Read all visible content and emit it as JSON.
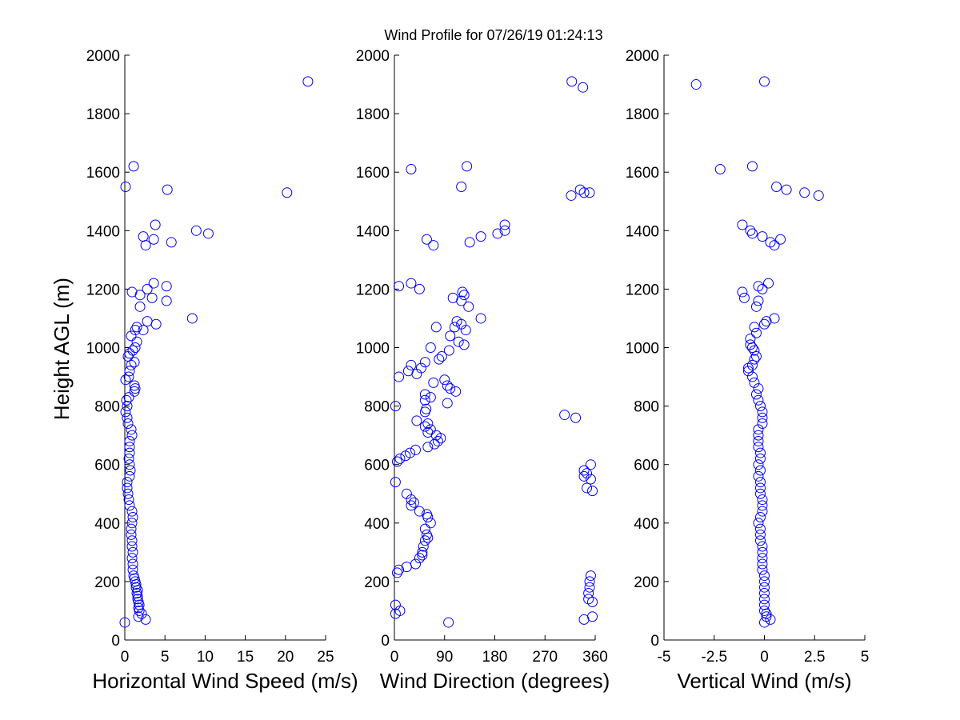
{
  "figure": {
    "title": "Wind Profile for  07/26/19 01:24:13",
    "ylabel": "Height AGL (m)"
  },
  "colors": {
    "marker": "#0000ff",
    "axis": "#000000"
  },
  "chart_data": [
    {
      "type": "scatter",
      "xlabel": "Horizontal Wind Speed (m/s)",
      "ylabel": "Height AGL (m)",
      "xlim": [
        0,
        25
      ],
      "ylim": [
        0,
        2000
      ],
      "xticks": [
        0,
        5,
        10,
        15,
        20,
        25
      ],
      "xtick_labels": [
        "0",
        "5",
        "10",
        "15",
        "20",
        "25"
      ],
      "yticks": [
        0,
        200,
        400,
        600,
        800,
        1000,
        1200,
        1400,
        1600,
        1800,
        2000
      ],
      "ytick_labels": [
        "0",
        "200",
        "400",
        "600",
        "800",
        "1000",
        "1200",
        "1400",
        "1600",
        "1800",
        "2000"
      ],
      "grid": false,
      "points": [
        [
          0.0,
          60
        ],
        [
          2.6,
          70
        ],
        [
          1.7,
          80
        ],
        [
          2.1,
          90
        ],
        [
          1.8,
          100
        ],
        [
          1.7,
          110
        ],
        [
          1.8,
          120
        ],
        [
          1.7,
          130
        ],
        [
          1.6,
          140
        ],
        [
          1.6,
          150
        ],
        [
          1.5,
          160
        ],
        [
          1.6,
          170
        ],
        [
          1.4,
          180
        ],
        [
          1.4,
          190
        ],
        [
          1.3,
          200
        ],
        [
          1.2,
          210
        ],
        [
          1.1,
          220
        ],
        [
          1.0,
          240
        ],
        [
          1.0,
          260
        ],
        [
          0.9,
          280
        ],
        [
          1.0,
          300
        ],
        [
          0.9,
          320
        ],
        [
          0.9,
          340
        ],
        [
          0.8,
          360
        ],
        [
          0.8,
          380
        ],
        [
          0.9,
          400
        ],
        [
          1.0,
          420
        ],
        [
          0.9,
          440
        ],
        [
          0.6,
          460
        ],
        [
          0.5,
          480
        ],
        [
          0.4,
          500
        ],
        [
          0.3,
          520
        ],
        [
          0.3,
          540
        ],
        [
          0.6,
          560
        ],
        [
          0.7,
          580
        ],
        [
          0.6,
          600
        ],
        [
          0.5,
          620
        ],
        [
          0.6,
          640
        ],
        [
          0.6,
          660
        ],
        [
          0.6,
          680
        ],
        [
          0.9,
          700
        ],
        [
          0.8,
          720
        ],
        [
          0.4,
          740
        ],
        [
          0.3,
          760
        ],
        [
          0.1,
          780
        ],
        [
          0.3,
          800
        ],
        [
          0.2,
          820
        ],
        [
          0.5,
          830
        ],
        [
          1.2,
          850
        ],
        [
          1.3,
          860
        ],
        [
          1.2,
          870
        ],
        [
          0.1,
          890
        ],
        [
          0.5,
          900
        ],
        [
          0.6,
          920
        ],
        [
          0.8,
          940
        ],
        [
          1.2,
          950
        ],
        [
          0.4,
          970
        ],
        [
          0.6,
          980
        ],
        [
          1.0,
          990
        ],
        [
          1.3,
          1000
        ],
        [
          1.5,
          1020
        ],
        [
          0.8,
          1040
        ],
        [
          1.3,
          1060
        ],
        [
          2.3,
          1060
        ],
        [
          1.5,
          1070
        ],
        [
          3.9,
          1080
        ],
        [
          2.8,
          1090
        ],
        [
          8.4,
          1100
        ],
        [
          1.9,
          1140
        ],
        [
          5.2,
          1160
        ],
        [
          3.4,
          1170
        ],
        [
          1.9,
          1180
        ],
        [
          0.9,
          1190
        ],
        [
          2.8,
          1200
        ],
        [
          5.2,
          1210
        ],
        [
          3.6,
          1220
        ],
        [
          2.6,
          1350
        ],
        [
          3.6,
          1370
        ],
        [
          2.3,
          1380
        ],
        [
          10.4,
          1390
        ],
        [
          8.9,
          1400
        ],
        [
          3.8,
          1420
        ],
        [
          5.8,
          1360
        ],
        [
          20.2,
          1530
        ],
        [
          5.3,
          1540
        ],
        [
          0.1,
          1550
        ],
        [
          1.1,
          1620
        ],
        [
          22.8,
          1910
        ]
      ]
    },
    {
      "type": "scatter",
      "xlabel": "Wind Direction (degrees)",
      "ylabel": "",
      "xlim": [
        0,
        360
      ],
      "ylim": [
        0,
        2000
      ],
      "xticks": [
        0,
        90,
        180,
        270,
        360
      ],
      "xtick_labels": [
        "0",
        "90",
        "180",
        "270",
        "360"
      ],
      "yticks": [
        0,
        200,
        400,
        600,
        800,
        1000,
        1200,
        1400,
        1600,
        1800,
        2000
      ],
      "ytick_labels": [
        "0",
        "200",
        "400",
        "600",
        "800",
        "1000",
        "1200",
        "1400",
        "1600",
        "1800",
        "2000"
      ],
      "grid": false,
      "points": [
        [
          97,
          60
        ],
        [
          340,
          70
        ],
        [
          355,
          80
        ],
        [
          2,
          90
        ],
        [
          10,
          100
        ],
        [
          2,
          120
        ],
        [
          355,
          130
        ],
        [
          348,
          140
        ],
        [
          348,
          160
        ],
        [
          350,
          180
        ],
        [
          350,
          200
        ],
        [
          352,
          220
        ],
        [
          5,
          230
        ],
        [
          8,
          240
        ],
        [
          22,
          250
        ],
        [
          38,
          260
        ],
        [
          45,
          280
        ],
        [
          50,
          290
        ],
        [
          50,
          300
        ],
        [
          52,
          320
        ],
        [
          55,
          340
        ],
        [
          60,
          350
        ],
        [
          58,
          360
        ],
        [
          55,
          380
        ],
        [
          65,
          400
        ],
        [
          60,
          420
        ],
        [
          58,
          430
        ],
        [
          45,
          440
        ],
        [
          30,
          460
        ],
        [
          35,
          470
        ],
        [
          30,
          480
        ],
        [
          22,
          500
        ],
        [
          355,
          510
        ],
        [
          345,
          520
        ],
        [
          2,
          540
        ],
        [
          352,
          550
        ],
        [
          340,
          560
        ],
        [
          345,
          570
        ],
        [
          340,
          580
        ],
        [
          352,
          600
        ],
        [
          5,
          610
        ],
        [
          10,
          620
        ],
        [
          20,
          630
        ],
        [
          28,
          640
        ],
        [
          38,
          650
        ],
        [
          60,
          660
        ],
        [
          72,
          670
        ],
        [
          78,
          680
        ],
        [
          83,
          690
        ],
        [
          75,
          700
        ],
        [
          60,
          710
        ],
        [
          65,
          720
        ],
        [
          55,
          730
        ],
        [
          60,
          740
        ],
        [
          40,
          750
        ],
        [
          325,
          760
        ],
        [
          305,
          770
        ],
        [
          55,
          780
        ],
        [
          57,
          790
        ],
        [
          2,
          800
        ],
        [
          95,
          810
        ],
        [
          55,
          820
        ],
        [
          65,
          830
        ],
        [
          55,
          840
        ],
        [
          110,
          850
        ],
        [
          100,
          860
        ],
        [
          95,
          870
        ],
        [
          70,
          880
        ],
        [
          90,
          890
        ],
        [
          8,
          900
        ],
        [
          40,
          910
        ],
        [
          25,
          920
        ],
        [
          48,
          930
        ],
        [
          30,
          940
        ],
        [
          55,
          950
        ],
        [
          80,
          960
        ],
        [
          85,
          970
        ],
        [
          98,
          990
        ],
        [
          65,
          1000
        ],
        [
          125,
          1010
        ],
        [
          115,
          1020
        ],
        [
          100,
          1040
        ],
        [
          128,
          1060
        ],
        [
          108,
          1070
        ],
        [
          75,
          1070
        ],
        [
          120,
          1080
        ],
        [
          112,
          1090
        ],
        [
          155,
          1100
        ],
        [
          133,
          1140
        ],
        [
          120,
          1160
        ],
        [
          105,
          1170
        ],
        [
          125,
          1180
        ],
        [
          122,
          1190
        ],
        [
          45,
          1200
        ],
        [
          8,
          1210
        ],
        [
          30,
          1220
        ],
        [
          70,
          1350
        ],
        [
          58,
          1370
        ],
        [
          135,
          1360
        ],
        [
          155,
          1380
        ],
        [
          185,
          1390
        ],
        [
          198,
          1400
        ],
        [
          198,
          1420
        ],
        [
          340,
          1530
        ],
        [
          350,
          1530
        ],
        [
          333,
          1540
        ],
        [
          120,
          1550
        ],
        [
          30,
          1610
        ],
        [
          130,
          1620
        ],
        [
          317,
          1520
        ],
        [
          318,
          1910
        ],
        [
          338,
          1890
        ]
      ]
    },
    {
      "type": "scatter",
      "xlabel": "Vertical Wind (m/s)",
      "ylabel": "",
      "xlim": [
        -5,
        5
      ],
      "ylim": [
        0,
        2000
      ],
      "xticks": [
        -5,
        -2.5,
        0,
        2.5,
        5
      ],
      "xtick_labels": [
        "-5",
        "-2.5",
        "0",
        "2.5",
        "5"
      ],
      "yticks": [
        0,
        200,
        400,
        600,
        800,
        1000,
        1200,
        1400,
        1600,
        1800,
        2000
      ],
      "ytick_labels": [
        "0",
        "200",
        "400",
        "600",
        "800",
        "1000",
        "1200",
        "1400",
        "1600",
        "1800",
        "2000"
      ],
      "grid": false,
      "points": [
        [
          0.0,
          60
        ],
        [
          0.3,
          70
        ],
        [
          0.1,
          80
        ],
        [
          0.1,
          90
        ],
        [
          0.0,
          100
        ],
        [
          0.0,
          120
        ],
        [
          0.0,
          140
        ],
        [
          0.0,
          160
        ],
        [
          0.0,
          180
        ],
        [
          0.0,
          200
        ],
        [
          0.0,
          220
        ],
        [
          -0.1,
          240
        ],
        [
          -0.1,
          260
        ],
        [
          -0.1,
          280
        ],
        [
          -0.1,
          300
        ],
        [
          -0.1,
          320
        ],
        [
          -0.2,
          340
        ],
        [
          -0.2,
          360
        ],
        [
          -0.2,
          380
        ],
        [
          -0.3,
          400
        ],
        [
          -0.2,
          420
        ],
        [
          -0.1,
          440
        ],
        [
          -0.1,
          460
        ],
        [
          -0.1,
          480
        ],
        [
          -0.2,
          500
        ],
        [
          -0.2,
          520
        ],
        [
          -0.2,
          540
        ],
        [
          -0.3,
          560
        ],
        [
          -0.2,
          580
        ],
        [
          -0.3,
          600
        ],
        [
          -0.2,
          620
        ],
        [
          -0.2,
          640
        ],
        [
          -0.3,
          660
        ],
        [
          -0.3,
          680
        ],
        [
          -0.3,
          700
        ],
        [
          -0.3,
          720
        ],
        [
          -0.1,
          740
        ],
        [
          -0.1,
          760
        ],
        [
          -0.1,
          780
        ],
        [
          -0.2,
          800
        ],
        [
          -0.3,
          820
        ],
        [
          -0.4,
          840
        ],
        [
          -0.3,
          860
        ],
        [
          -0.5,
          880
        ],
        [
          -0.6,
          900
        ],
        [
          -0.8,
          920
        ],
        [
          -0.8,
          930
        ],
        [
          -0.6,
          940
        ],
        [
          -0.5,
          960
        ],
        [
          -0.4,
          970
        ],
        [
          -0.5,
          990
        ],
        [
          -0.6,
          1000
        ],
        [
          -0.7,
          1010
        ],
        [
          -0.7,
          1030
        ],
        [
          -0.4,
          1050
        ],
        [
          -0.5,
          1070
        ],
        [
          0.0,
          1080
        ],
        [
          0.1,
          1090
        ],
        [
          0.5,
          1100
        ],
        [
          -0.4,
          1140
        ],
        [
          -0.3,
          1160
        ],
        [
          -1.0,
          1170
        ],
        [
          -1.1,
          1190
        ],
        [
          -0.1,
          1200
        ],
        [
          -0.3,
          1210
        ],
        [
          0.2,
          1220
        ],
        [
          0.5,
          1350
        ],
        [
          0.3,
          1360
        ],
        [
          0.8,
          1370
        ],
        [
          -0.1,
          1380
        ],
        [
          -0.6,
          1390
        ],
        [
          -0.7,
          1400
        ],
        [
          -1.1,
          1420
        ],
        [
          2.7,
          1520
        ],
        [
          2.0,
          1530
        ],
        [
          1.1,
          1540
        ],
        [
          0.6,
          1550
        ],
        [
          -2.2,
          1610
        ],
        [
          -0.6,
          1620
        ],
        [
          -3.4,
          1900
        ],
        [
          0.0,
          1910
        ]
      ]
    }
  ]
}
